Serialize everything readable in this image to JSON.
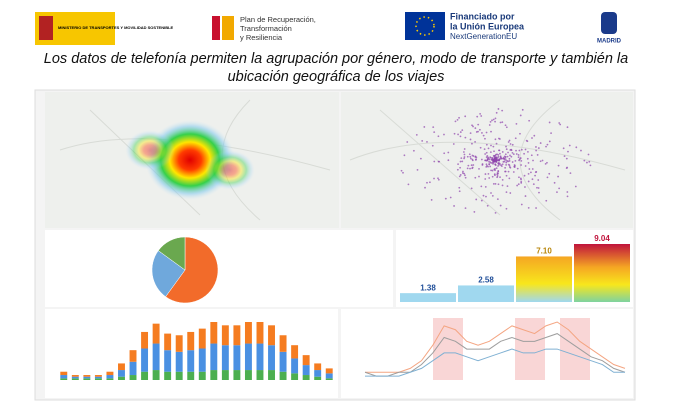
{
  "header": {
    "ministry": "MINISTERIO DE TRANSPORTES Y MOVILIDAD SOSTENIBLE",
    "plan": [
      "Plan de Recuperación,",
      "Transformación",
      "y Resiliencia"
    ],
    "eu": [
      "Financiado por",
      "la Unión Europea"
    ],
    "eu_sub": "NextGenerationEU",
    "city": "MADRID"
  },
  "title": [
    "Los datos de telefonía permiten la agrupación por género, modo de transporte y también la",
    "ubicación geográfica de los viajes"
  ],
  "dashboard": {
    "pie_panel": {
      "values": [
        60,
        25,
        15
      ],
      "colors": [
        "#f26b2a",
        "#6fa8dc",
        "#6aa84f"
      ]
    },
    "bar_panel": {
      "values": [
        1.38,
        2.58,
        7.1,
        9.04
      ],
      "value_labels": [
        "1.38",
        "2.58",
        "7.10",
        "9.04"
      ]
    },
    "stacked_panel": {
      "series": [
        {
          "color": "#4caf50",
          "values": [
            1,
            1,
            1,
            1,
            1,
            2,
            3,
            5,
            6,
            5,
            5,
            5,
            5,
            6,
            6,
            6,
            6,
            6,
            6,
            5,
            4,
            3,
            2,
            1
          ]
        },
        {
          "color": "#4a90e2",
          "values": [
            2,
            1,
            1,
            1,
            2,
            4,
            8,
            14,
            16,
            13,
            12,
            13,
            14,
            16,
            15,
            15,
            16,
            16,
            15,
            12,
            9,
            6,
            4,
            3
          ]
        },
        {
          "color": "#f57c20",
          "values": [
            2,
            1,
            1,
            1,
            2,
            4,
            7,
            10,
            12,
            10,
            10,
            11,
            12,
            13,
            12,
            12,
            13,
            13,
            12,
            10,
            8,
            6,
            4,
            3
          ]
        }
      ]
    },
    "line_panel": {
      "series": [
        {
          "color": "#f4a582",
          "values": [
            2,
            2,
            2,
            2,
            3,
            5,
            9,
            14,
            13,
            10,
            9,
            10,
            12,
            14,
            13,
            12,
            14,
            15,
            13,
            10,
            8,
            6,
            4,
            3
          ]
        },
        {
          "color": "#9e9e9e",
          "values": [
            2,
            1,
            1,
            2,
            2,
            4,
            7,
            11,
            10,
            8,
            8,
            8,
            10,
            11,
            10,
            10,
            11,
            12,
            10,
            8,
            6,
            5,
            3,
            2
          ]
        },
        {
          "color": "#80b1d3",
          "values": [
            1,
            1,
            1,
            1,
            2,
            3,
            5,
            7,
            7,
            6,
            5,
            6,
            7,
            8,
            7,
            7,
            8,
            8,
            7,
            6,
            5,
            4,
            2,
            2
          ]
        }
      ]
    }
  }
}
